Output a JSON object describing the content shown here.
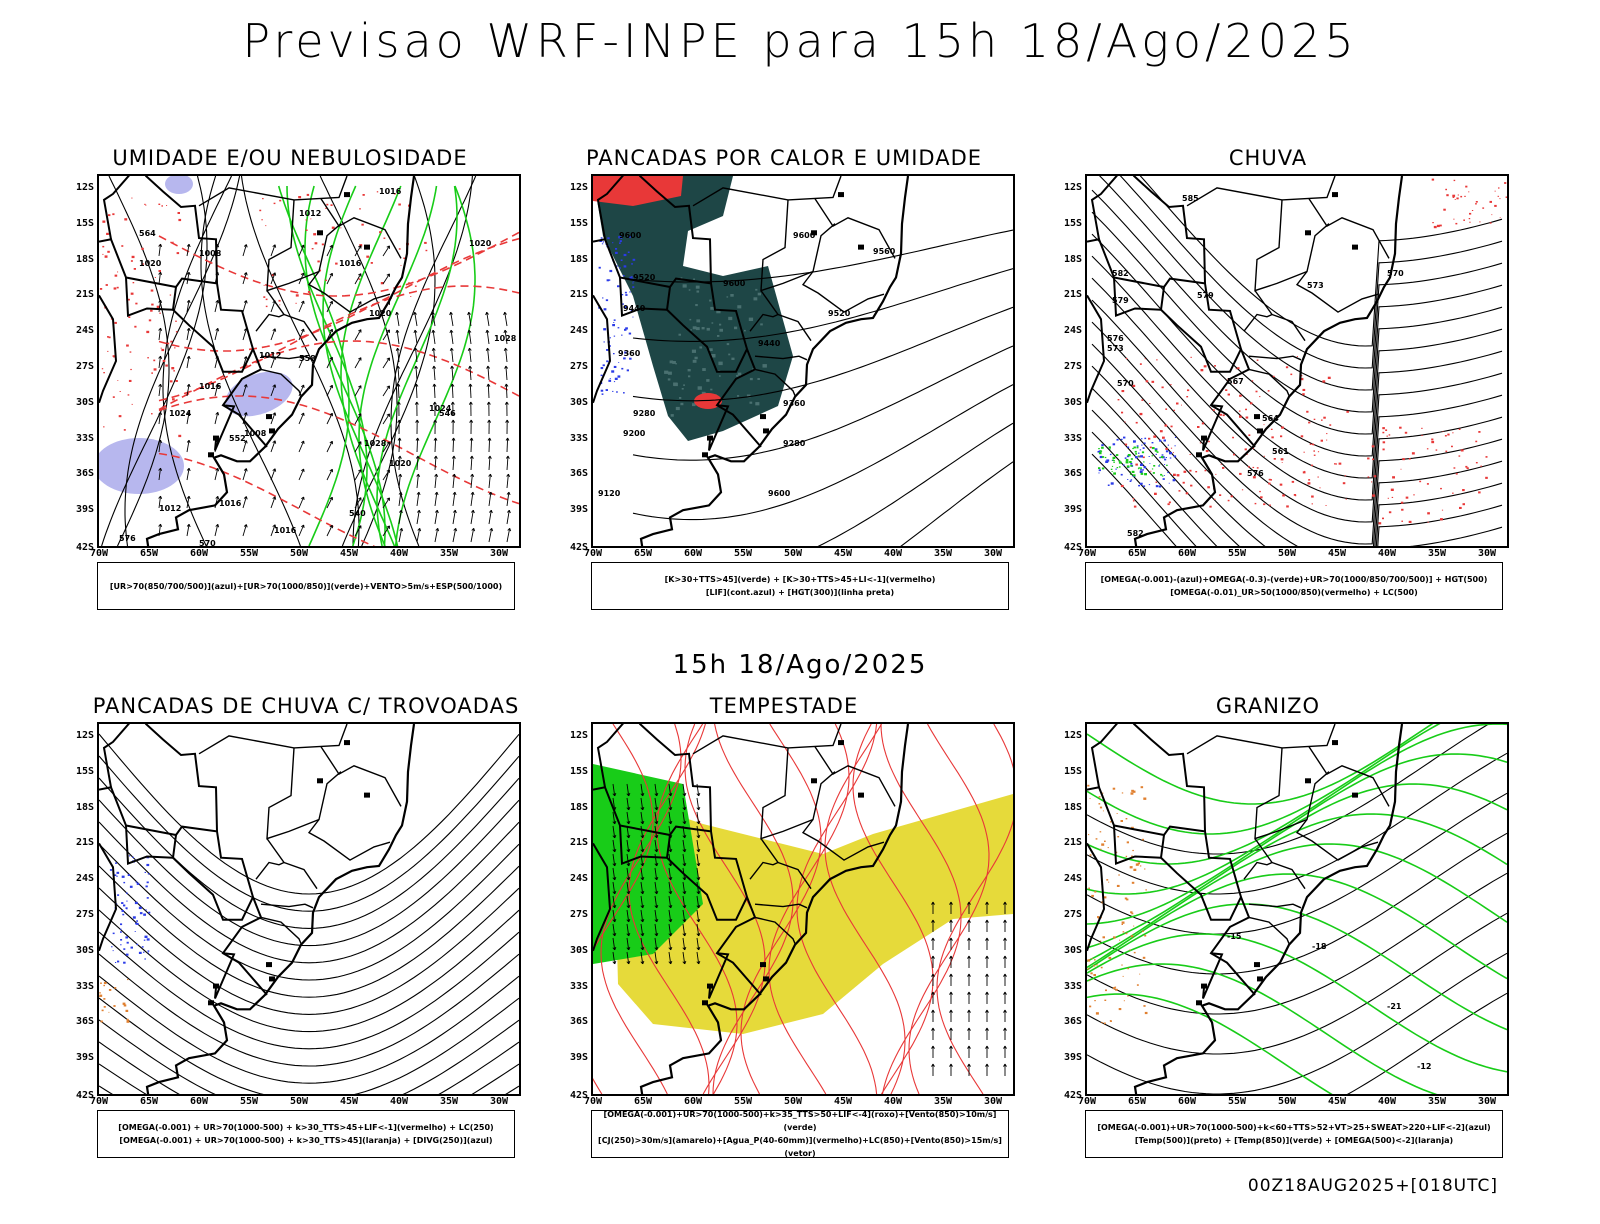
{
  "title": "Previsao WRF-INPE  para 15h 18/Ago/2025",
  "subtitle": "15h 18/Ago/2025",
  "footer": "00Z18AUG2025+[018UTC]",
  "axes": {
    "lat": [
      "12S",
      "15S",
      "18S",
      "21S",
      "24S",
      "27S",
      "30S",
      "33S",
      "36S",
      "39S",
      "42S"
    ],
    "lon": [
      "70W",
      "65W",
      "60W",
      "55W",
      "50W",
      "45W",
      "40W",
      "35W",
      "30W"
    ]
  },
  "colors": {
    "green": "#18cc18",
    "red": "#e83838",
    "blue": "#2b3be8",
    "lavender": "#b7b7ee",
    "darkteal": "#1e4646",
    "yellow": "#e6da3a",
    "orange": "#e08030",
    "black": "#000000"
  },
  "panels": [
    {
      "title": "UMIDADE E/OU NEBULOSIDADE",
      "legend": [
        "[UR>70(850/700/500)](azul)+[UR>70(1000/850)](verde)+VENTO>5m/s+ESP(500/1000)"
      ],
      "contour_labels": [
        "1016",
        "1012",
        "1020",
        "1008",
        "1016",
        "1020",
        "1012",
        "1016",
        "1024",
        "1008",
        "1012",
        "1016",
        "1020",
        "1028",
        "1028",
        "1020",
        "1016",
        "576",
        "570",
        "564",
        "558",
        "552",
        "540",
        "546",
        "1024"
      ]
    },
    {
      "title": "PANCADAS POR CALOR E UMIDADE",
      "legend": [
        "[K>30+TTS>45](verde) + [K>30+TTS>45+LI<-1](vermelho)",
        "[LIF](cont.azul) + [HGT(300)](linha preta)"
      ],
      "contour_labels": [
        "9600",
        "9520",
        "9440",
        "9360",
        "9280",
        "9200",
        "9120",
        "9600",
        "9560",
        "9520",
        "9440",
        "9360",
        "9280",
        "9600",
        "9600"
      ]
    },
    {
      "title": "CHUVA",
      "legend": [
        "[OMEGA(-0.001)-(azul)+OMEGA(-0.3)-(verde)+UR>70(1000/850/700/500)] + HGT(500)",
        "[OMEGA(-0.01)_UR>50(1000/850)(vermelho) + LC(500)"
      ],
      "contour_labels": [
        "585",
        "582",
        "579",
        "576",
        "573",
        "570",
        "567",
        "564",
        "561",
        "576",
        "582",
        "579",
        "573",
        "570"
      ]
    },
    {
      "title": "PANCADAS DE CHUVA C/ TROVOADAS",
      "legend": [
        "[OMEGA(-0.001) + UR>70(1000-500) + k>30_TTS>45+LIF<-1](vermelho) + LC(250)",
        "[OMEGA(-0.001) + UR>70(1000-500) + k>30_TTS>45](laranja) + [DIVG(250)](azul)"
      ],
      "contour_labels": []
    },
    {
      "title": "TEMPESTADE",
      "legend": [
        "[OMEGA(-0.001)+UR>70(1000-500)+k>35_TTS>50+LIF<-4](roxo)+[Vento(850)>10m/s](verde)",
        "[CJ(250)>30m/s](amarelo)+[Agua_P(40-60mm)](vermelho)+LC(850)+[Vento(850)>15m/s](vetor)"
      ],
      "contour_labels": []
    },
    {
      "title": "GRANIZO",
      "legend": [
        "[OMEGA(-0.001)+UR>70(1000-500)+k<60+TTS>52+VT>25+SWEAT>220+LIF<-2](azul)",
        "[Temp(500)](preto) + [Temp(850)](verde) + [OMEGA(500)<-2](laranja)"
      ],
      "contour_labels": [
        "-18",
        "-21",
        "-15",
        "-12"
      ]
    }
  ]
}
